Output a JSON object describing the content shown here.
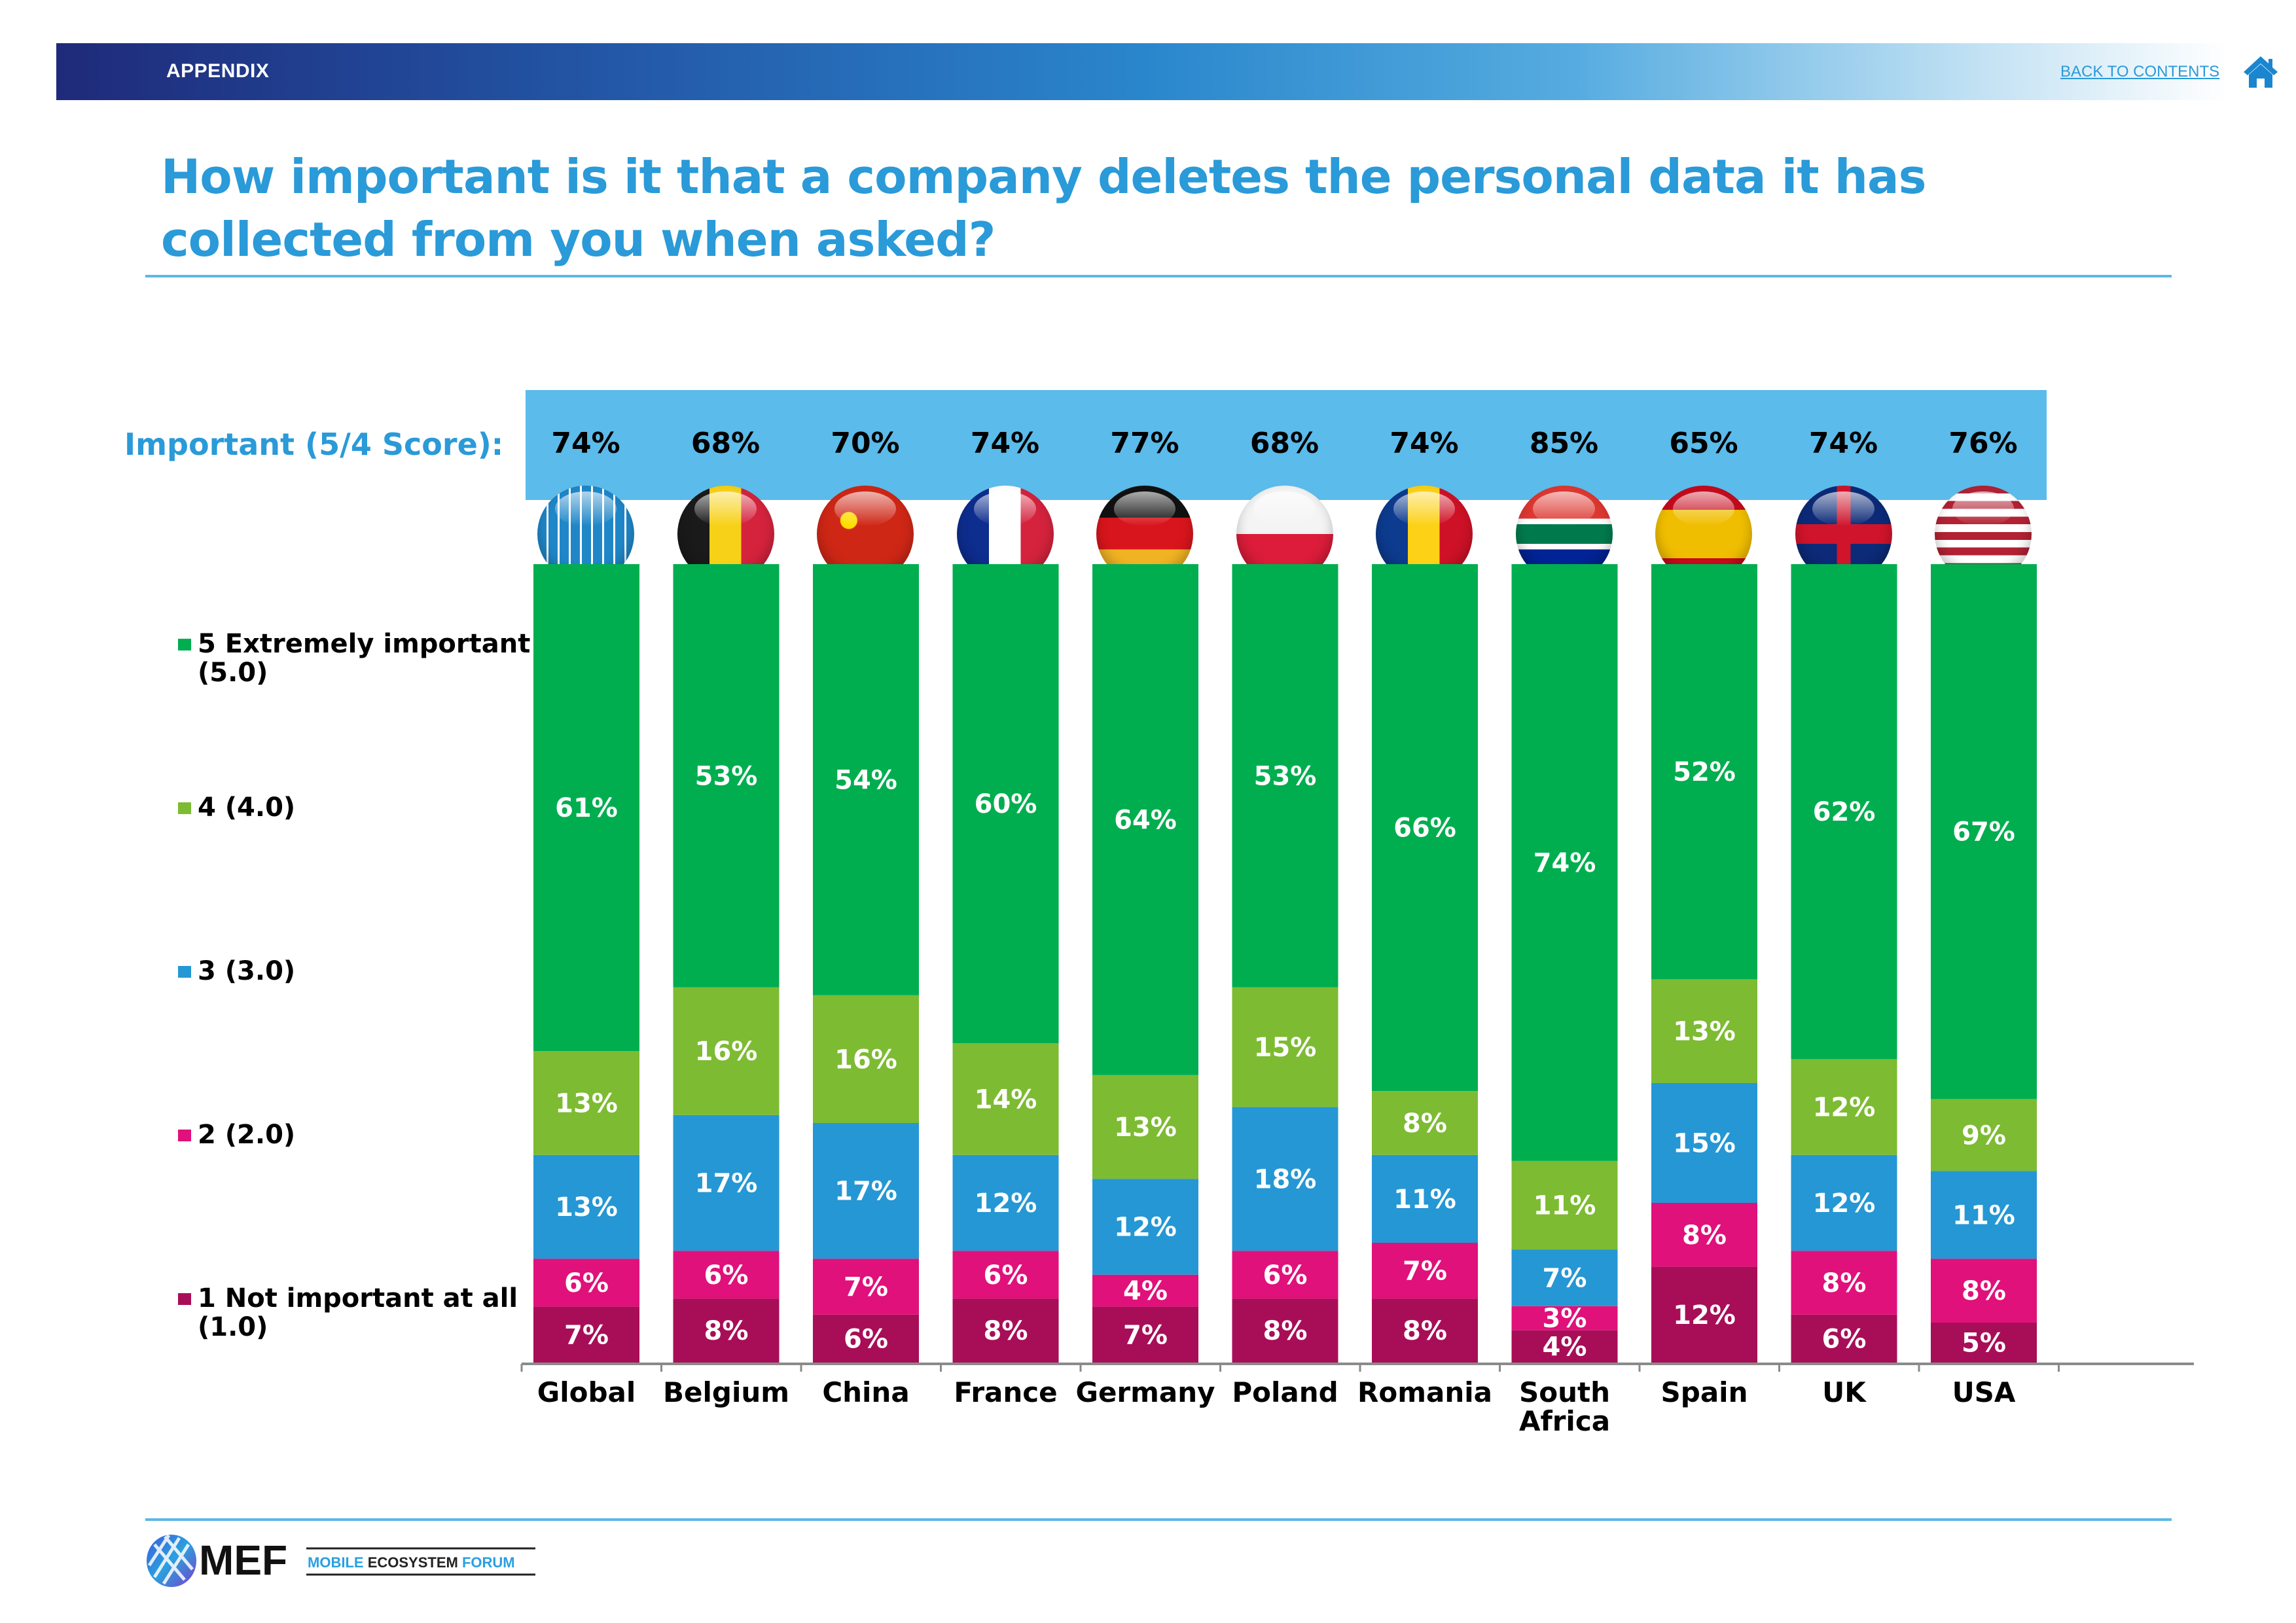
{
  "header": {
    "section": "APPENDIX",
    "back_link": "BACK TO CONTENTS",
    "home_icon": "home-icon"
  },
  "title": "How important is it that a company deletes the personal data it has collected from you when asked?",
  "score_row": {
    "label": "Important (5/4 Score):",
    "values": [
      "74%",
      "68%",
      "70%",
      "74%",
      "77%",
      "68%",
      "74%",
      "85%",
      "65%",
      "74%",
      "76%"
    ]
  },
  "flags": [
    "globe-icon",
    "belgium-flag-icon",
    "china-flag-icon",
    "france-flag-icon",
    "germany-flag-icon",
    "poland-flag-icon",
    "romania-flag-icon",
    "south-africa-flag-icon",
    "spain-flag-icon",
    "uk-flag-icon",
    "usa-flag-icon"
  ],
  "colors": {
    "s5": "#00ae4f",
    "s4": "#7dbb32",
    "s3": "#2597d4",
    "s2": "#e0117a",
    "s1": "#a80e57",
    "title": "#2a9ad8",
    "score_band": "#5bbbea"
  },
  "legend": [
    {
      "key": "s5",
      "label": "5 Extremely important (5.0)"
    },
    {
      "key": "s4",
      "label": "4 (4.0)"
    },
    {
      "key": "s3",
      "label": "3 (3.0)"
    },
    {
      "key": "s2",
      "label": "2 (2.0)"
    },
    {
      "key": "s1",
      "label": "1 Not important at all (1.0)"
    }
  ],
  "chart_data": {
    "type": "bar",
    "stacked": true,
    "normalized_percent": true,
    "title": "How important is it that a company deletes the personal data it has collected from you when asked?",
    "xlabel": "",
    "ylabel": "",
    "ylim": [
      0,
      100
    ],
    "grid": false,
    "legend_position": "left",
    "categories": [
      "Global",
      "Belgium",
      "China",
      "France",
      "Germany",
      "Poland",
      "Romania",
      "South Africa",
      "Spain",
      "UK",
      "USA"
    ],
    "series": [
      {
        "name": "1 Not important at all (1.0)",
        "key": "s1",
        "values": [
          7,
          8,
          6,
          8,
          7,
          8,
          8,
          4,
          12,
          6,
          5
        ]
      },
      {
        "name": "2 (2.0)",
        "key": "s2",
        "values": [
          6,
          6,
          7,
          6,
          4,
          6,
          7,
          3,
          8,
          8,
          8
        ]
      },
      {
        "name": "3 (3.0)",
        "key": "s3",
        "values": [
          13,
          17,
          17,
          12,
          12,
          18,
          11,
          7,
          15,
          12,
          11
        ]
      },
      {
        "name": "4 (4.0)",
        "key": "s4",
        "values": [
          13,
          16,
          16,
          14,
          13,
          15,
          8,
          11,
          13,
          12,
          9
        ]
      },
      {
        "name": "5 Extremely important (5.0)",
        "key": "s5",
        "values": [
          61,
          53,
          54,
          60,
          64,
          53,
          66,
          74,
          52,
          62,
          67
        ]
      }
    ],
    "top_annotation": {
      "label": "Important (5/4 Score):",
      "values": [
        74,
        68,
        70,
        74,
        77,
        68,
        74,
        85,
        65,
        74,
        76
      ]
    }
  },
  "footer": {
    "logo_mark": "MEF",
    "logo_text_1": "MOBILE",
    "logo_text_2": "ECOSYSTEM",
    "logo_text_3": "FORUM"
  }
}
